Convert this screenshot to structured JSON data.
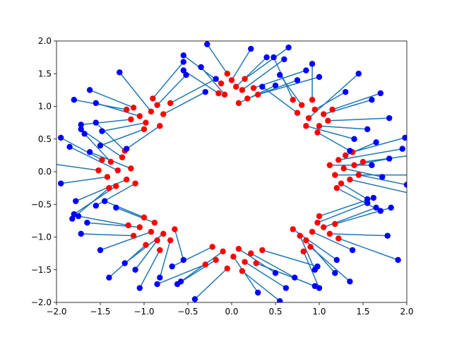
{
  "chart_data": {
    "type": "scatter",
    "title": "",
    "xlabel": "",
    "ylabel": "",
    "xlim": [
      -2.0,
      2.0
    ],
    "ylim": [
      -2.0,
      2.0
    ],
    "grid": false,
    "legend": "none",
    "x_ticks": [
      -2.0,
      -1.5,
      -1.0,
      -0.5,
      0.0,
      0.5,
      1.0,
      1.5,
      2.0
    ],
    "y_ticks": [
      -2.0,
      -1.5,
      -1.0,
      -0.5,
      0.0,
      0.5,
      1.0,
      1.5,
      2.0
    ],
    "x_tick_labels": [
      "−2.0",
      "−1.5",
      "−1.0",
      "−0.5",
      "0.0",
      "0.5",
      "1.0",
      "1.5",
      "2.0"
    ],
    "y_tick_labels": [
      "−2.0",
      "−1.5",
      "−1.0",
      "−0.5",
      "0.0",
      "0.5",
      "1.0",
      "1.5",
      "2.0"
    ],
    "colors": {
      "red_points": "#ff0000",
      "blue_points": "#0000ff",
      "lines": "#1f77b4"
    },
    "description_of_marks": "Red points clustered near 8 centers on a ring of radius ~1.3; each red point connected by a line to a blue point displaced outward.",
    "red_points": [
      [
        1.28,
        0.05
      ],
      [
        1.35,
        -0.12
      ],
      [
        1.22,
        0.18
      ],
      [
        1.4,
        0.1
      ],
      [
        1.18,
        -0.05
      ],
      [
        1.3,
        0.25
      ],
      [
        1.45,
        -0.05
      ],
      [
        1.25,
        -0.18
      ],
      [
        1.38,
        0.3
      ],
      [
        1.12,
        0.1
      ],
      [
        1.5,
        0.15
      ],
      [
        1.2,
        -0.25
      ],
      [
        0.95,
        0.95
      ],
      [
        0.88,
        0.82
      ],
      [
        1.05,
        0.88
      ],
      [
        0.8,
        1.02
      ],
      [
        1.0,
        0.7
      ],
      [
        0.92,
        1.1
      ],
      [
        1.1,
        0.78
      ],
      [
        0.75,
        0.9
      ],
      [
        1.15,
        0.95
      ],
      [
        0.85,
        0.7
      ],
      [
        0.98,
        0.6
      ],
      [
        0.7,
        1.1
      ],
      [
        0.05,
        1.3
      ],
      [
        -0.08,
        1.18
      ],
      [
        0.12,
        1.25
      ],
      [
        0.0,
        1.4
      ],
      [
        0.18,
        1.12
      ],
      [
        -0.12,
        1.35
      ],
      [
        0.08,
        1.05
      ],
      [
        0.25,
        1.28
      ],
      [
        -0.05,
        1.5
      ],
      [
        0.15,
        1.42
      ],
      [
        0.3,
        1.18
      ],
      [
        -0.15,
        1.2
      ],
      [
        -0.92,
        0.92
      ],
      [
        -1.05,
        0.85
      ],
      [
        -0.85,
        1.02
      ],
      [
        -0.98,
        0.75
      ],
      [
        -1.12,
        0.98
      ],
      [
        -0.78,
        0.88
      ],
      [
        -0.9,
        1.12
      ],
      [
        -1.15,
        0.8
      ],
      [
        -0.7,
        1.05
      ],
      [
        -1.0,
        0.65
      ],
      [
        -0.82,
        0.7
      ],
      [
        -1.2,
        0.95
      ],
      [
        -1.3,
        0.02
      ],
      [
        -1.2,
        -0.12
      ],
      [
        -1.38,
        0.15
      ],
      [
        -1.25,
        0.22
      ],
      [
        -1.42,
        -0.08
      ],
      [
        -1.15,
        0.05
      ],
      [
        -1.32,
        -0.22
      ],
      [
        -1.48,
        0.18
      ],
      [
        -1.1,
        -0.18
      ],
      [
        -1.22,
        0.32
      ],
      [
        -1.4,
        -0.25
      ],
      [
        -1.52,
        0.02
      ],
      [
        -0.92,
        -0.92
      ],
      [
        -0.85,
        -1.05
      ],
      [
        -1.05,
        -0.85
      ],
      [
        -0.78,
        -0.95
      ],
      [
        -0.98,
        -1.12
      ],
      [
        -1.12,
        -0.98
      ],
      [
        -0.7,
        -1.05
      ],
      [
        -0.88,
        -0.78
      ],
      [
        -1.18,
        -0.82
      ],
      [
        -0.82,
        -1.2
      ],
      [
        -1.0,
        -0.7
      ],
      [
        -0.65,
        -0.88
      ],
      [
        0.02,
        -1.3
      ],
      [
        -0.1,
        -1.22
      ],
      [
        0.15,
        -1.38
      ],
      [
        0.08,
        -1.18
      ],
      [
        -0.18,
        -1.35
      ],
      [
        0.22,
        -1.25
      ],
      [
        -0.05,
        -1.48
      ],
      [
        0.28,
        -1.4
      ],
      [
        -0.22,
        -1.15
      ],
      [
        0.12,
        -1.52
      ],
      [
        0.35,
        -1.2
      ],
      [
        -0.3,
        -1.42
      ],
      [
        0.92,
        -0.92
      ],
      [
        1.05,
        -0.85
      ],
      [
        0.85,
        -1.05
      ],
      [
        0.98,
        -0.78
      ],
      [
        0.78,
        -0.98
      ],
      [
        1.12,
        -0.95
      ],
      [
        0.9,
        -1.15
      ],
      [
        1.18,
        -0.8
      ],
      [
        0.7,
        -0.88
      ],
      [
        1.0,
        -0.68
      ],
      [
        0.82,
        -1.22
      ],
      [
        1.22,
        -1.02
      ]
    ],
    "blue_points": [
      [
        1.72,
        -0.08
      ],
      [
        2.1,
        -0.35
      ],
      [
        1.95,
        0.35
      ],
      [
        1.8,
        0.2
      ],
      [
        2.15,
        -0.05
      ],
      [
        1.65,
        0.45
      ],
      [
        2.0,
        -0.2
      ],
      [
        1.55,
        -0.42
      ],
      [
        1.98,
        0.52
      ],
      [
        1.6,
        0.1
      ],
      [
        2.05,
        0.25
      ],
      [
        1.7,
        -0.6
      ],
      [
        1.3,
        1.22
      ],
      [
        1.45,
        1.5
      ],
      [
        1.6,
        1.1
      ],
      [
        0.55,
        1.48
      ],
      [
        1.55,
        0.65
      ],
      [
        0.92,
        1.65
      ],
      [
        1.8,
        0.82
      ],
      [
        0.35,
        1.3
      ],
      [
        1.7,
        1.2
      ],
      [
        1.4,
        0.5
      ],
      [
        1.35,
        0.32
      ],
      [
        0.48,
        1.75
      ],
      [
        0.4,
        1.75
      ],
      [
        -0.35,
        1.6
      ],
      [
        0.6,
        1.72
      ],
      [
        0.22,
        1.88
      ],
      [
        0.75,
        1.4
      ],
      [
        -0.55,
        1.78
      ],
      [
        0.5,
        1.32
      ],
      [
        0.85,
        1.55
      ],
      [
        -0.28,
        1.95
      ],
      [
        0.65,
        1.9
      ],
      [
        1.0,
        1.45
      ],
      [
        -0.55,
        1.55
      ],
      [
        -1.28,
        1.52
      ],
      [
        -1.55,
        1.05
      ],
      [
        -0.52,
        1.48
      ],
      [
        -1.48,
        0.62
      ],
      [
        -1.62,
        1.25
      ],
      [
        -0.3,
        1.22
      ],
      [
        -0.55,
        1.68
      ],
      [
        -1.72,
        0.72
      ],
      [
        -0.18,
        1.42
      ],
      [
        -1.5,
        0.4
      ],
      [
        -1.2,
        0.35
      ],
      [
        -1.8,
        1.1
      ],
      [
        -1.85,
        0.38
      ],
      [
        -1.78,
        -0.45
      ],
      [
        -1.68,
        0.58
      ],
      [
        -1.72,
        0.65
      ],
      [
        -1.95,
        -0.18
      ],
      [
        -1.62,
        0.3
      ],
      [
        -1.8,
        -0.65
      ],
      [
        -1.95,
        0.52
      ],
      [
        -1.55,
        -0.52
      ],
      [
        -1.55,
        0.75
      ],
      [
        -1.82,
        -0.72
      ],
      [
        -2.05,
        0.12
      ],
      [
        -1.5,
        -1.2
      ],
      [
        -1.1,
        -1.5
      ],
      [
        -1.65,
        -0.78
      ],
      [
        -1.22,
        -1.4
      ],
      [
        -1.4,
        -1.62
      ],
      [
        -1.72,
        -0.95
      ],
      [
        -0.82,
        -1.62
      ],
      [
        -1.32,
        -0.55
      ],
      [
        -1.75,
        -0.68
      ],
      [
        -1.05,
        -1.78
      ],
      [
        -1.45,
        -0.45
      ],
      [
        -0.55,
        -1.35
      ],
      [
        0.3,
        -1.85
      ],
      [
        -0.58,
        -1.68
      ],
      [
        0.62,
        -1.78
      ],
      [
        0.5,
        -1.55
      ],
      [
        -0.62,
        -1.72
      ],
      [
        0.72,
        -1.62
      ],
      [
        -0.42,
        -1.95
      ],
      [
        0.95,
        -1.75
      ],
      [
        -0.68,
        -1.45
      ],
      [
        0.55,
        -1.98
      ],
      [
        0.98,
        -1.45
      ],
      [
        -0.85,
        -1.72
      ],
      [
        1.38,
        -1.2
      ],
      [
        1.65,
        -0.55
      ],
      [
        1.18,
        -1.55
      ],
      [
        1.55,
        -0.48
      ],
      [
        0.95,
        -1.5
      ],
      [
        1.78,
        -0.98
      ],
      [
        1.35,
        -1.68
      ],
      [
        1.82,
        -0.55
      ],
      [
        1.2,
        -1.35
      ],
      [
        1.62,
        -0.4
      ],
      [
        1.0,
        -1.78
      ],
      [
        1.9,
        -1.35
      ]
    ]
  }
}
